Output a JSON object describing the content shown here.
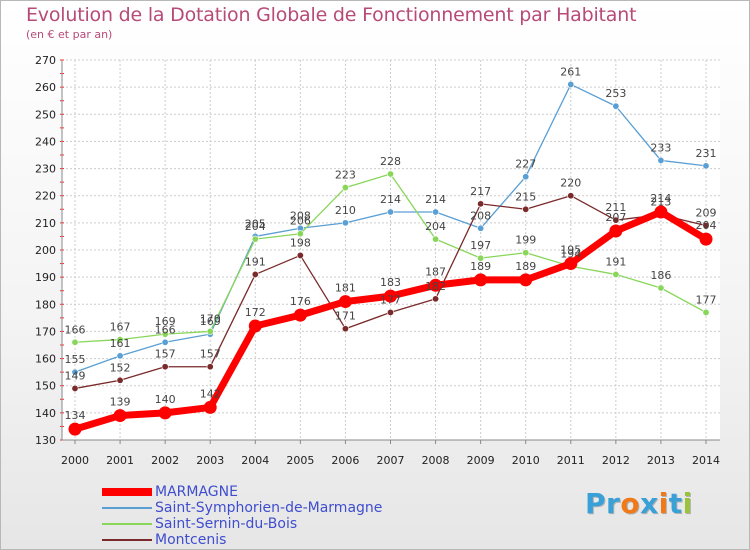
{
  "header": {
    "title": "Evolution de la Dotation Globale de Fonctionnement par Habitant",
    "subtitle": "(en € et par an)"
  },
  "logo": {
    "text": "Proxiti",
    "letters": [
      "P",
      "r",
      "o",
      "x",
      "i",
      "t",
      "i"
    ],
    "colors": [
      "#3aa0d8",
      "#3aa0d8",
      "#f07a1a",
      "#3aa0d8",
      "#f07a1a",
      "#3aa0d8",
      "#9ac23c"
    ]
  },
  "chart_data": {
    "type": "line",
    "title": "Evolution de la Dotation Globale de Fonctionnement par Habitant",
    "subtitle": "(en € et par an)",
    "xlabel": "",
    "ylabel": "",
    "ylim": [
      130,
      270
    ],
    "yticks": [
      130,
      140,
      150,
      160,
      170,
      180,
      190,
      200,
      210,
      220,
      230,
      240,
      250,
      260,
      270
    ],
    "grid": true,
    "legend_position": "bottom-left",
    "x": [
      2000,
      2001,
      2002,
      2003,
      2004,
      2005,
      2006,
      2007,
      2008,
      2009,
      2010,
      2011,
      2012,
      2013,
      2014
    ],
    "series": [
      {
        "name": "Saint-Symphorien-de-Marmagne",
        "color": "#5a9fd4",
        "values": [
          155,
          161,
          166,
          169,
          205,
          208,
          210,
          214,
          214,
          208,
          227,
          261,
          253,
          233,
          231
        ],
        "labels": [
          "155",
          "161",
          "166",
          "169",
          "205",
          "208",
          "210",
          "214",
          "214",
          "208",
          "227",
          "261",
          "253",
          "233",
          "231"
        ]
      },
      {
        "name": "Saint-Sernin-du-Bois",
        "color": "#88d65a",
        "values": [
          166,
          167,
          169,
          170,
          204,
          206,
          223,
          228,
          204,
          197,
          199,
          194,
          191,
          186,
          177
        ],
        "labels": [
          "166",
          "167",
          "169",
          "170",
          "204",
          "206",
          "223",
          "228",
          "204",
          "197",
          "199",
          "194",
          "191",
          "186",
          "177"
        ]
      },
      {
        "name": "Montcenis",
        "color": "#7a2a2a",
        "values": [
          149,
          152,
          157,
          157,
          191,
          198,
          171,
          177,
          182,
          217,
          215,
          220,
          211,
          213,
          209
        ],
        "labels": [
          "149",
          "152",
          "157",
          "157",
          "191",
          "198",
          "171",
          "177",
          "182",
          "217",
          "215",
          "220",
          "211",
          "213",
          "209"
        ]
      },
      {
        "name": "MARMAGNE",
        "color": "#ff0000",
        "values": [
          134,
          139,
          140,
          142,
          172,
          176,
          181,
          183,
          187,
          189,
          189,
          195,
          207,
          214,
          204
        ],
        "labels": [
          "134",
          "139",
          "140",
          "142",
          "172",
          "176",
          "181",
          "183",
          "187",
          "189",
          "189",
          "195",
          "207",
          "214",
          "204"
        ]
      }
    ],
    "legend_order": [
      "MARMAGNE",
      "Saint-Symphorien-de-Marmagne",
      "Saint-Sernin-du-Bois",
      "Montcenis"
    ]
  }
}
